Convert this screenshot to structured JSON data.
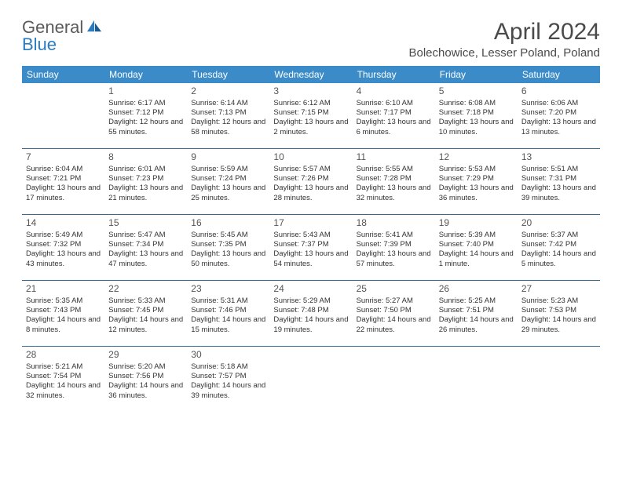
{
  "logo": {
    "word1": "General",
    "word2": "Blue"
  },
  "title": "April 2024",
  "location": "Bolechowice, Lesser Poland, Poland",
  "colors": {
    "header_bg": "#3b8bc8",
    "header_text": "#ffffff",
    "row_border": "#3b6a8f",
    "body_text": "#333333",
    "title_text": "#4a4a4a",
    "logo_gray": "#5a5a5a",
    "logo_blue": "#2b7bbf",
    "background": "#ffffff"
  },
  "day_names": [
    "Sunday",
    "Monday",
    "Tuesday",
    "Wednesday",
    "Thursday",
    "Friday",
    "Saturday"
  ],
  "weeks": [
    [
      null,
      {
        "n": "1",
        "sr": "6:17 AM",
        "ss": "7:12 PM",
        "dl": "12 hours and 55 minutes."
      },
      {
        "n": "2",
        "sr": "6:14 AM",
        "ss": "7:13 PM",
        "dl": "12 hours and 58 minutes."
      },
      {
        "n": "3",
        "sr": "6:12 AM",
        "ss": "7:15 PM",
        "dl": "13 hours and 2 minutes."
      },
      {
        "n": "4",
        "sr": "6:10 AM",
        "ss": "7:17 PM",
        "dl": "13 hours and 6 minutes."
      },
      {
        "n": "5",
        "sr": "6:08 AM",
        "ss": "7:18 PM",
        "dl": "13 hours and 10 minutes."
      },
      {
        "n": "6",
        "sr": "6:06 AM",
        "ss": "7:20 PM",
        "dl": "13 hours and 13 minutes."
      }
    ],
    [
      {
        "n": "7",
        "sr": "6:04 AM",
        "ss": "7:21 PM",
        "dl": "13 hours and 17 minutes."
      },
      {
        "n": "8",
        "sr": "6:01 AM",
        "ss": "7:23 PM",
        "dl": "13 hours and 21 minutes."
      },
      {
        "n": "9",
        "sr": "5:59 AM",
        "ss": "7:24 PM",
        "dl": "13 hours and 25 minutes."
      },
      {
        "n": "10",
        "sr": "5:57 AM",
        "ss": "7:26 PM",
        "dl": "13 hours and 28 minutes."
      },
      {
        "n": "11",
        "sr": "5:55 AM",
        "ss": "7:28 PM",
        "dl": "13 hours and 32 minutes."
      },
      {
        "n": "12",
        "sr": "5:53 AM",
        "ss": "7:29 PM",
        "dl": "13 hours and 36 minutes."
      },
      {
        "n": "13",
        "sr": "5:51 AM",
        "ss": "7:31 PM",
        "dl": "13 hours and 39 minutes."
      }
    ],
    [
      {
        "n": "14",
        "sr": "5:49 AM",
        "ss": "7:32 PM",
        "dl": "13 hours and 43 minutes."
      },
      {
        "n": "15",
        "sr": "5:47 AM",
        "ss": "7:34 PM",
        "dl": "13 hours and 47 minutes."
      },
      {
        "n": "16",
        "sr": "5:45 AM",
        "ss": "7:35 PM",
        "dl": "13 hours and 50 minutes."
      },
      {
        "n": "17",
        "sr": "5:43 AM",
        "ss": "7:37 PM",
        "dl": "13 hours and 54 minutes."
      },
      {
        "n": "18",
        "sr": "5:41 AM",
        "ss": "7:39 PM",
        "dl": "13 hours and 57 minutes."
      },
      {
        "n": "19",
        "sr": "5:39 AM",
        "ss": "7:40 PM",
        "dl": "14 hours and 1 minute."
      },
      {
        "n": "20",
        "sr": "5:37 AM",
        "ss": "7:42 PM",
        "dl": "14 hours and 5 minutes."
      }
    ],
    [
      {
        "n": "21",
        "sr": "5:35 AM",
        "ss": "7:43 PM",
        "dl": "14 hours and 8 minutes."
      },
      {
        "n": "22",
        "sr": "5:33 AM",
        "ss": "7:45 PM",
        "dl": "14 hours and 12 minutes."
      },
      {
        "n": "23",
        "sr": "5:31 AM",
        "ss": "7:46 PM",
        "dl": "14 hours and 15 minutes."
      },
      {
        "n": "24",
        "sr": "5:29 AM",
        "ss": "7:48 PM",
        "dl": "14 hours and 19 minutes."
      },
      {
        "n": "25",
        "sr": "5:27 AM",
        "ss": "7:50 PM",
        "dl": "14 hours and 22 minutes."
      },
      {
        "n": "26",
        "sr": "5:25 AM",
        "ss": "7:51 PM",
        "dl": "14 hours and 26 minutes."
      },
      {
        "n": "27",
        "sr": "5:23 AM",
        "ss": "7:53 PM",
        "dl": "14 hours and 29 minutes."
      }
    ],
    [
      {
        "n": "28",
        "sr": "5:21 AM",
        "ss": "7:54 PM",
        "dl": "14 hours and 32 minutes."
      },
      {
        "n": "29",
        "sr": "5:20 AM",
        "ss": "7:56 PM",
        "dl": "14 hours and 36 minutes."
      },
      {
        "n": "30",
        "sr": "5:18 AM",
        "ss": "7:57 PM",
        "dl": "14 hours and 39 minutes."
      },
      null,
      null,
      null,
      null
    ]
  ],
  "labels": {
    "sunrise": "Sunrise:",
    "sunset": "Sunset:",
    "daylight": "Daylight:"
  }
}
